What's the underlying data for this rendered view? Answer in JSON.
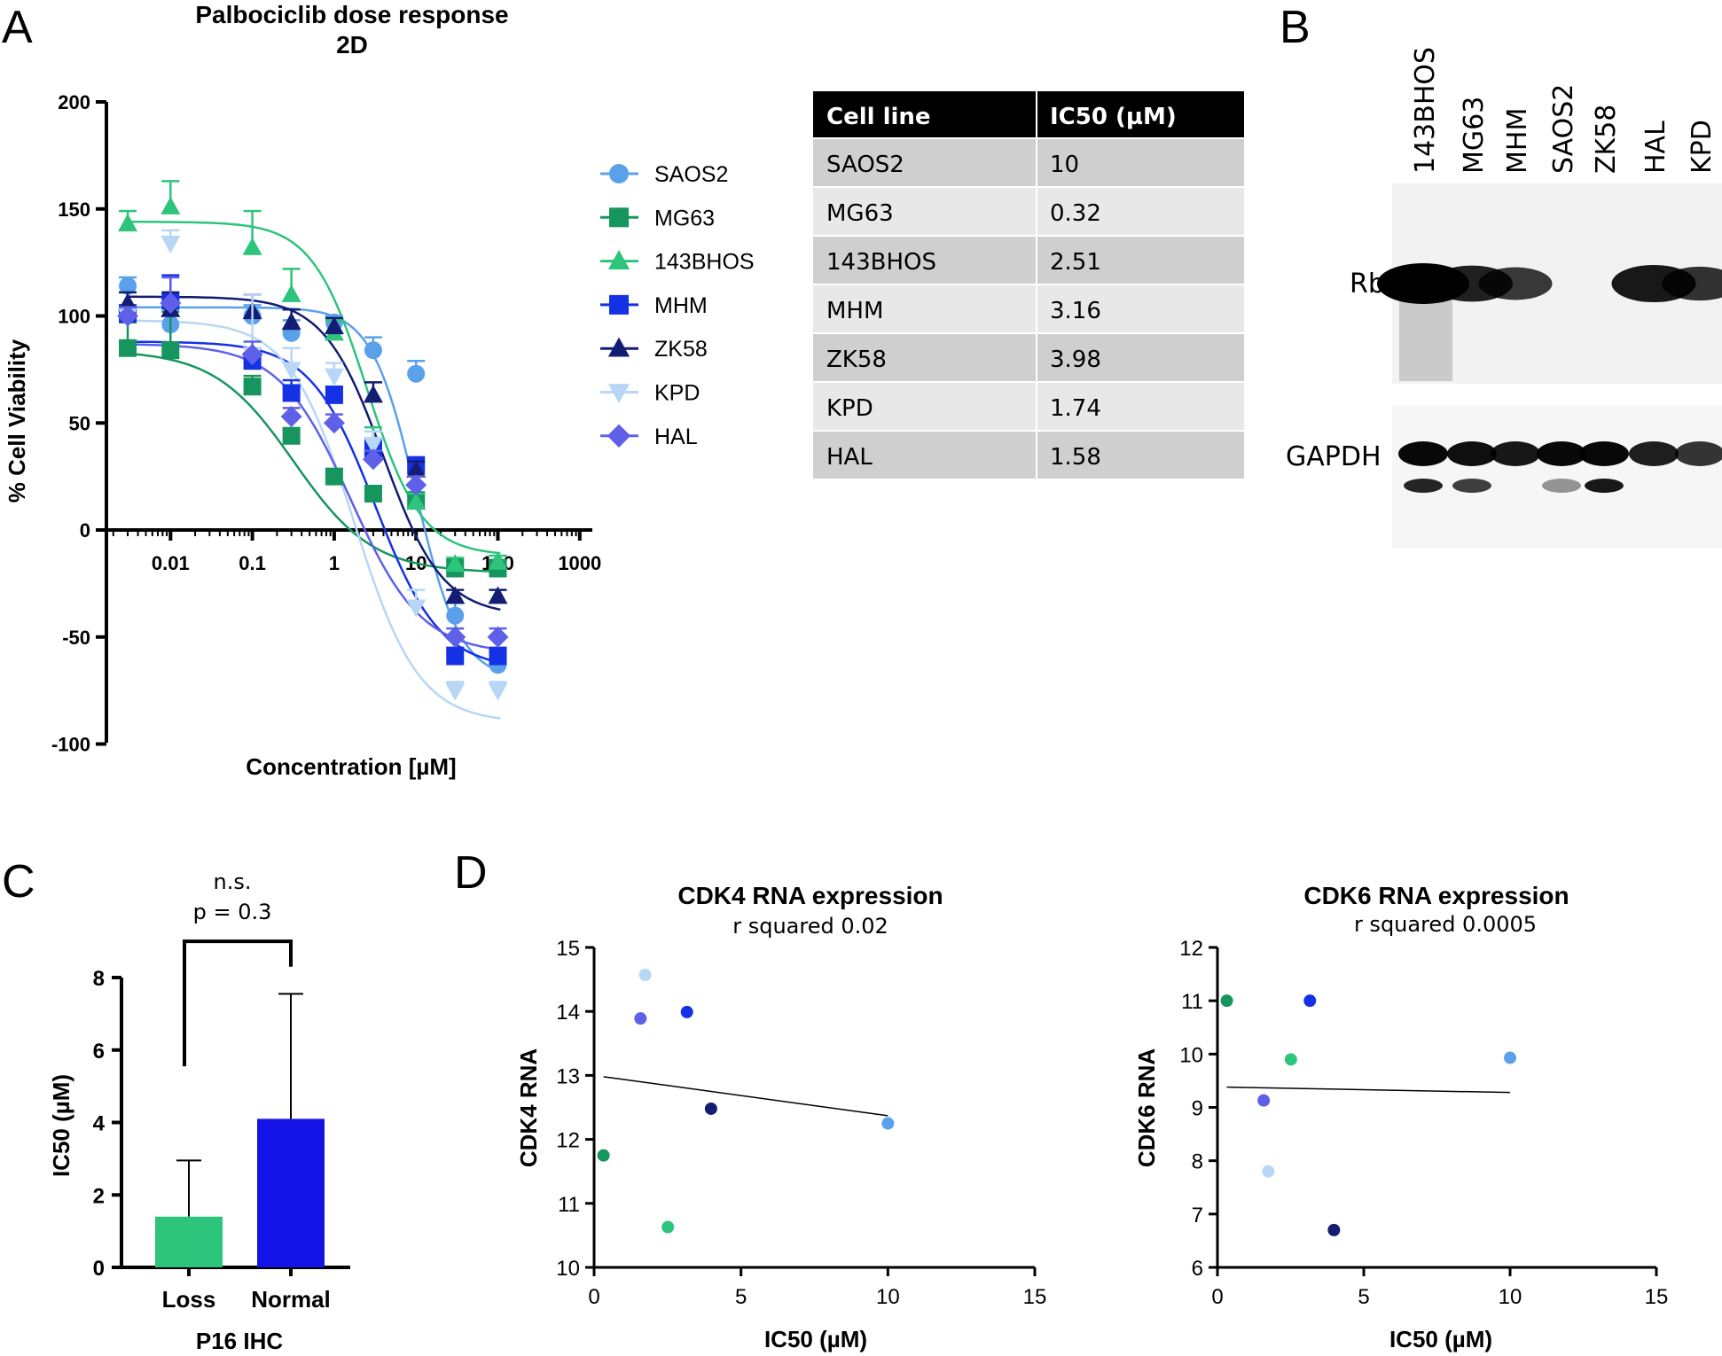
{
  "colors": {
    "SAOS2": "#5aa0ea",
    "MG63": "#17955e",
    "143BHOS": "#2dc47c",
    "MHM": "#1431e6",
    "ZK58": "#131d73",
    "KPD": "#b8d6f6",
    "HAL": "#5f60e8",
    "table_header": "#000000",
    "table_row_dark": "#cfcfcf",
    "table_row_light": "#e8e8e8",
    "bar_loss": "#2dc47c",
    "bar_normal": "#1414e6"
  },
  "panels": {
    "A": "A",
    "B": "B",
    "C": "C",
    "D": "D"
  },
  "chart_data": [
    {
      "id": "dose_response",
      "type": "scatter",
      "title": "Palbociclib dose response",
      "subtitle": "2D",
      "xlabel": "Concentration [µM]",
      "ylabel": "% Cell Viability",
      "xscale": "log",
      "xlim": [
        0.001,
        1000
      ],
      "ylim": [
        -100,
        200
      ],
      "xticks": [
        0.01,
        0.1,
        1,
        10,
        100,
        1000
      ],
      "xtick_labels": [
        "0.01",
        "0.1",
        "1",
        "10",
        "100",
        "1000"
      ],
      "yticks": [
        -100,
        -50,
        0,
        50,
        100,
        150,
        200
      ],
      "ytick_labels": [
        "-100",
        "-50",
        "0",
        "50",
        "100",
        "150",
        "200"
      ],
      "legend_position": "right",
      "concentrations": [
        0.003,
        0.01,
        0.1,
        0.3,
        1,
        3,
        10,
        30,
        100
      ],
      "series": [
        {
          "name": "SAOS2",
          "marker": "circle",
          "values": [
            114,
            96,
            100,
            92,
            97,
            84,
            73,
            -40,
            -63
          ],
          "errors": [
            4,
            10,
            5,
            6,
            3,
            6,
            6,
            6,
            4
          ],
          "fit": {
            "top": 104,
            "bottom": -70,
            "ic50": 10,
            "hill": 1.6
          }
        },
        {
          "name": "MG63",
          "marker": "square",
          "values": [
            85,
            84,
            67,
            44,
            25,
            17,
            14,
            -18,
            -18
          ],
          "errors": [
            12,
            18,
            5,
            3,
            3,
            3,
            3,
            4,
            4
          ],
          "fit": {
            "top": 84,
            "bottom": -20,
            "ic50": 0.32,
            "hill": 0.9
          }
        },
        {
          "name": "143BHOS",
          "marker": "triangle-up",
          "values": [
            143,
            151,
            132,
            110,
            92,
            40,
            13,
            -16,
            -15
          ],
          "errors": [
            6,
            12,
            17,
            12,
            6,
            8,
            4,
            3,
            3
          ],
          "fit": {
            "top": 144,
            "bottom": -12,
            "ic50": 2.51,
            "hill": 1.3
          }
        },
        {
          "name": "MHM",
          "marker": "square",
          "values": [
            101,
            107,
            79,
            64,
            63,
            38,
            30,
            -59,
            -59
          ],
          "errors": [
            4,
            12,
            6,
            6,
            4,
            4,
            4,
            4,
            4
          ],
          "fit": {
            "top": 88,
            "bottom": -65,
            "ic50": 3.16,
            "hill": 1.1
          }
        },
        {
          "name": "ZK58",
          "marker": "triangle-up",
          "values": [
            106,
            103,
            102,
            97,
            95,
            63,
            28,
            -31,
            -31
          ],
          "errors": [
            5,
            8,
            8,
            6,
            4,
            6,
            4,
            3,
            3
          ],
          "fit": {
            "top": 109,
            "bottom": -40,
            "ic50": 3.98,
            "hill": 1.2
          }
        },
        {
          "name": "KPD",
          "marker": "triangle-down",
          "values": [
            100,
            134,
            82,
            75,
            72,
            40,
            -36,
            -75,
            -75
          ],
          "errors": [
            4,
            6,
            28,
            10,
            6,
            6,
            8,
            4,
            4
          ],
          "fit": {
            "top": 98,
            "bottom": -90,
            "ic50": 1.74,
            "hill": 1.1
          }
        },
        {
          "name": "HAL",
          "marker": "diamond",
          "values": [
            100,
            106,
            82,
            53,
            50,
            33,
            21,
            -50,
            -50
          ],
          "errors": [
            4,
            12,
            6,
            4,
            4,
            4,
            4,
            4,
            4
          ],
          "fit": {
            "top": 87,
            "bottom": -58,
            "ic50": 1.58,
            "hill": 1.0
          }
        }
      ]
    },
    {
      "id": "p16_ihc",
      "type": "bar",
      "categories": [
        "Loss",
        "Normal"
      ],
      "values": [
        1.4,
        4.1
      ],
      "errors": [
        1.55,
        3.45
      ],
      "xlabel": "P16 IHC",
      "ylabel": "IC50  (µM)",
      "ylim": [
        0,
        8
      ],
      "yticks": [
        0,
        2,
        4,
        6,
        8
      ],
      "ytick_labels": [
        "0",
        "2",
        "4",
        "6",
        "8"
      ],
      "bracket_ends": [
        5.55,
        8.3
      ],
      "bracket_top": 9.0,
      "annotations": [
        "n.s.",
        "p = 0.3"
      ]
    },
    {
      "id": "cdk4",
      "type": "scatter",
      "title": "CDK4 RNA expression",
      "subtitle": "r squared 0.02",
      "xlabel": "IC50 (µM)",
      "ylabel": "CDK4 RNA",
      "xlim": [
        0,
        15
      ],
      "ylim": [
        10,
        15
      ],
      "xticks": [
        0,
        5,
        10,
        15
      ],
      "xtick_labels": [
        "0",
        "5",
        "10",
        "15"
      ],
      "yticks": [
        10,
        11,
        12,
        13,
        14,
        15
      ],
      "ytick_labels": [
        "10",
        "11",
        "12",
        "13",
        "14",
        "15"
      ],
      "points": [
        {
          "cell_line": "KPD",
          "x": 1.74,
          "y": 14.57
        },
        {
          "cell_line": "HAL",
          "x": 1.58,
          "y": 13.89
        },
        {
          "cell_line": "MHM",
          "x": 3.16,
          "y": 13.99
        },
        {
          "cell_line": "ZK58",
          "x": 3.98,
          "y": 12.48
        },
        {
          "cell_line": "SAOS2",
          "x": 10,
          "y": 12.25
        },
        {
          "cell_line": "MG63",
          "x": 0.32,
          "y": 11.75
        },
        {
          "cell_line": "143BHOS",
          "x": 2.51,
          "y": 10.63
        }
      ],
      "fit_line": {
        "x": [
          0.32,
          10
        ],
        "y": [
          12.98,
          12.37
        ]
      }
    },
    {
      "id": "cdk6",
      "type": "scatter",
      "title": "CDK6 RNA expression",
      "subtitle": "r squared 0.0005",
      "xlabel": "IC50 (µM)",
      "ylabel": "CDK6 RNA",
      "xlim": [
        0,
        15
      ],
      "ylim": [
        6,
        12
      ],
      "xticks": [
        0,
        5,
        10,
        15
      ],
      "xtick_labels": [
        "0",
        "5",
        "10",
        "15"
      ],
      "yticks": [
        6,
        7,
        8,
        9,
        10,
        11,
        12
      ],
      "ytick_labels": [
        "6",
        "7",
        "8",
        "9",
        "10",
        "11",
        "12"
      ],
      "points": [
        {
          "cell_line": "MG63",
          "x": 0.32,
          "y": 11.0
        },
        {
          "cell_line": "MHM",
          "x": 3.16,
          "y": 11.0
        },
        {
          "cell_line": "143BHOS",
          "x": 2.51,
          "y": 9.9
        },
        {
          "cell_line": "SAOS2",
          "x": 10,
          "y": 9.93
        },
        {
          "cell_line": "HAL",
          "x": 1.58,
          "y": 9.13
        },
        {
          "cell_line": "KPD",
          "x": 1.74,
          "y": 7.8
        },
        {
          "cell_line": "ZK58",
          "x": 3.98,
          "y": 6.7
        }
      ],
      "fit_line": {
        "x": [
          0.32,
          10
        ],
        "y": [
          9.38,
          9.28
        ]
      }
    }
  ],
  "ic50_table": {
    "headers": [
      "Cell line",
      "IC50 (µM)"
    ],
    "rows": [
      [
        "SAOS2",
        "10"
      ],
      [
        "MG63",
        "0.32"
      ],
      [
        "143BHOS",
        "2.51"
      ],
      [
        "MHM",
        "3.16"
      ],
      [
        "ZK58",
        "3.98"
      ],
      [
        "KPD",
        "1.74"
      ],
      [
        "HAL",
        "1.58"
      ]
    ]
  },
  "western_blot": {
    "lanes": [
      "143BHOS",
      "MG63",
      "MHM",
      "SAOS2",
      "ZK58",
      "HAL",
      "KPD"
    ],
    "rb_label": "Rb",
    "gapdh_label": "GAPDH",
    "rb_intensity": [
      1.0,
      0.8,
      0.65,
      0.0,
      0.0,
      0.85,
      0.7
    ],
    "gapdh_intensity": [
      0.95,
      0.9,
      0.85,
      0.95,
      0.95,
      0.8,
      0.65
    ]
  }
}
